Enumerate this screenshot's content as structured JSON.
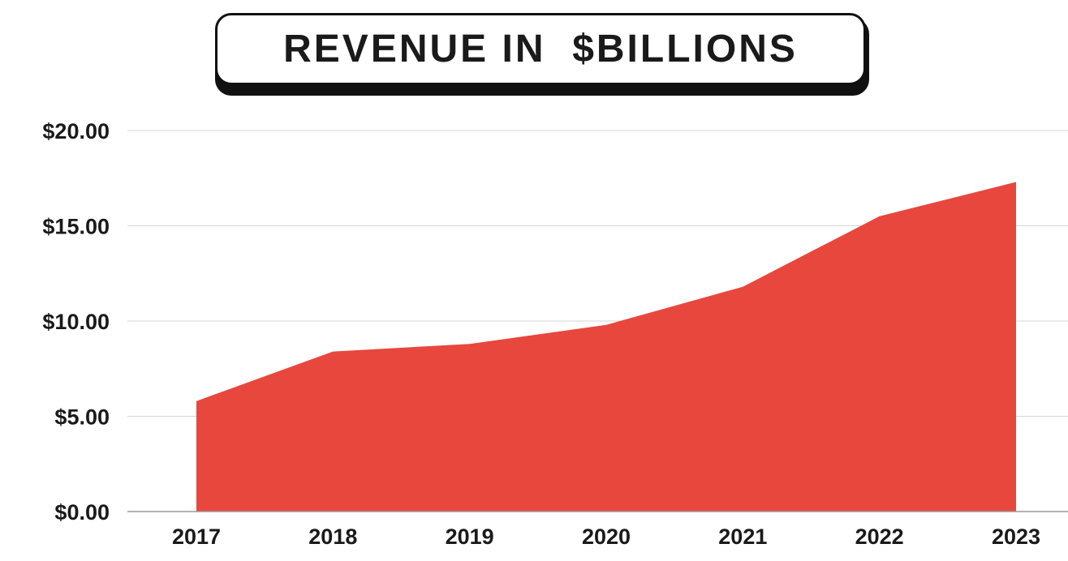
{
  "chart_data": {
    "type": "area",
    "title": "REVENUE IN  $BILLIONS",
    "x": [
      "2017",
      "2018",
      "2019",
      "2020",
      "2021",
      "2022",
      "2023"
    ],
    "series": [
      {
        "values": [
          5.8,
          8.4,
          8.8,
          9.8,
          11.8,
          15.5,
          17.3
        ]
      }
    ],
    "y_ticks": [
      "$0.00",
      "$5.00",
      "$10.00",
      "$15.00",
      "$20.00"
    ],
    "y_tick_values": [
      0,
      5,
      10,
      15,
      20
    ],
    "ylim": [
      0,
      20
    ],
    "xlabel": "",
    "ylabel": "",
    "grid": true,
    "legend": "none",
    "colors": {
      "area": "#e8473e",
      "grid": "#d4d4d4",
      "axis": "#9a9a9a",
      "text": "#1a1a1a"
    }
  }
}
